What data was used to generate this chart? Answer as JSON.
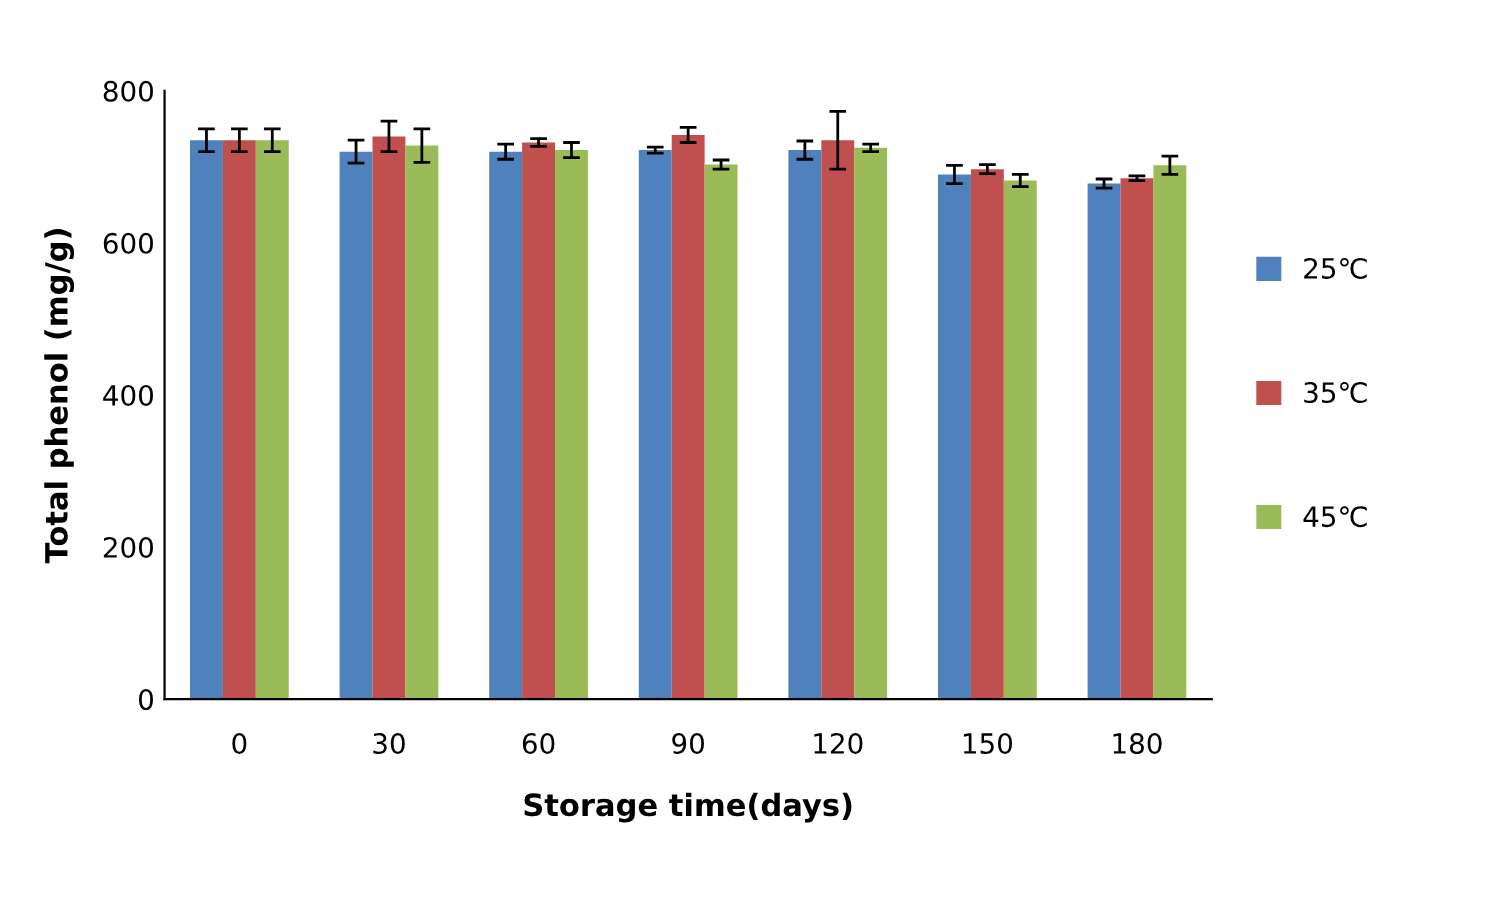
{
  "chart_data": {
    "type": "bar",
    "xlabel": "Storage time(days)",
    "ylabel": "Total phenol (mg/g)",
    "categories": [
      "0",
      "30",
      "60",
      "90",
      "120",
      "150",
      "180"
    ],
    "series": [
      {
        "name": "25℃",
        "color": "#4f81bd",
        "values": [
          735,
          720,
          720,
          722,
          722,
          690,
          678
        ],
        "errors": [
          15,
          15,
          10,
          4,
          12,
          12,
          6
        ]
      },
      {
        "name": "35℃",
        "color": "#c0504d",
        "values": [
          735,
          740,
          732,
          742,
          735,
          697,
          685
        ],
        "errors": [
          15,
          20,
          5,
          10,
          38,
          6,
          3
        ]
      },
      {
        "name": "45℃",
        "color": "#9bbb59",
        "values": [
          735,
          728,
          722,
          703,
          725,
          682,
          702
        ],
        "errors": [
          15,
          22,
          10,
          6,
          5,
          8,
          12
        ]
      }
    ],
    "ylim": [
      0,
      800
    ],
    "yticks": [
      0,
      200,
      400,
      600,
      800
    ],
    "grid": false,
    "legend": "right"
  }
}
